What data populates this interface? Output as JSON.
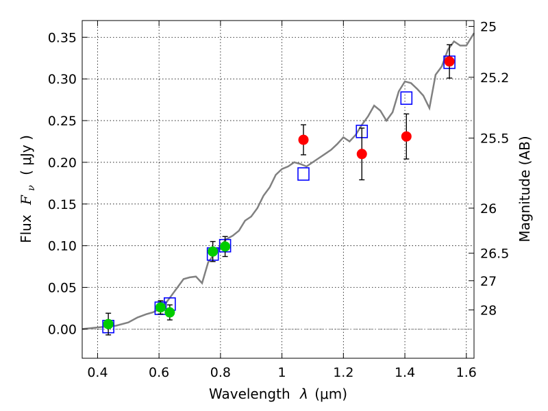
{
  "chart_data": {
    "type": "scatter",
    "xlabel": "Wavelength",
    "xlabel_symbol": "λ",
    "xlabel_unit": "(μm)",
    "ylabel": "Flux",
    "ylabel_symbol": "F",
    "ylabel_subscript": "ν",
    "ylabel_unit": "( μJy )",
    "y2label": "Magnitude (AB)",
    "xlim": [
      0.35,
      1.625
    ],
    "ylim": [
      -0.035,
      0.37
    ],
    "grid": true,
    "x_ticks": [
      0.4,
      0.6,
      0.8,
      1.0,
      1.2,
      1.4,
      1.6
    ],
    "x_tick_labels": [
      "0.4",
      "0.6",
      "0.8",
      "1",
      "1.2",
      "1.4",
      "1.6"
    ],
    "y_ticks": [
      0.0,
      0.05,
      0.1,
      0.15,
      0.2,
      0.25,
      0.3,
      0.35
    ],
    "y_tick_labels": [
      "0.00",
      "0.05",
      "0.10",
      "0.15",
      "0.20",
      "0.25",
      "0.30",
      "0.35"
    ],
    "y2_ticks": [
      {
        "label": "25",
        "flux": 0.363
      },
      {
        "label": "25.2",
        "flux": 0.302
      },
      {
        "label": "25.5",
        "flux": 0.229
      },
      {
        "label": "26",
        "flux": 0.145
      },
      {
        "label": "26.5",
        "flux": 0.091
      },
      {
        "label": "27",
        "flux": 0.058
      },
      {
        "label": "28",
        "flux": 0.023
      }
    ],
    "zero_line": 0.0,
    "series": [
      {
        "kind": "line",
        "color": "#808080",
        "points": [
          [
            0.35,
            0.0
          ],
          [
            0.4,
            0.002
          ],
          [
            0.43,
            0.003
          ],
          [
            0.46,
            0.004
          ],
          [
            0.5,
            0.008
          ],
          [
            0.53,
            0.014
          ],
          [
            0.56,
            0.018
          ],
          [
            0.58,
            0.02
          ],
          [
            0.6,
            0.024
          ],
          [
            0.62,
            0.03
          ],
          [
            0.64,
            0.04
          ],
          [
            0.66,
            0.05
          ],
          [
            0.68,
            0.06
          ],
          [
            0.7,
            0.062
          ],
          [
            0.72,
            0.063
          ],
          [
            0.74,
            0.055
          ],
          [
            0.76,
            0.08
          ],
          [
            0.78,
            0.09
          ],
          [
            0.8,
            0.1
          ],
          [
            0.82,
            0.108
          ],
          [
            0.84,
            0.112
          ],
          [
            0.86,
            0.118
          ],
          [
            0.88,
            0.13
          ],
          [
            0.9,
            0.135
          ],
          [
            0.92,
            0.145
          ],
          [
            0.94,
            0.16
          ],
          [
            0.96,
            0.17
          ],
          [
            0.98,
            0.185
          ],
          [
            1.0,
            0.192
          ],
          [
            1.02,
            0.195
          ],
          [
            1.04,
            0.2
          ],
          [
            1.06,
            0.198
          ],
          [
            1.08,
            0.195
          ],
          [
            1.1,
            0.2
          ],
          [
            1.12,
            0.205
          ],
          [
            1.14,
            0.21
          ],
          [
            1.16,
            0.215
          ],
          [
            1.18,
            0.222
          ],
          [
            1.2,
            0.23
          ],
          [
            1.22,
            0.225
          ],
          [
            1.24,
            0.233
          ],
          [
            1.26,
            0.245
          ],
          [
            1.28,
            0.255
          ],
          [
            1.3,
            0.268
          ],
          [
            1.32,
            0.262
          ],
          [
            1.34,
            0.25
          ],
          [
            1.36,
            0.26
          ],
          [
            1.38,
            0.285
          ],
          [
            1.4,
            0.297
          ],
          [
            1.42,
            0.295
          ],
          [
            1.44,
            0.288
          ],
          [
            1.46,
            0.28
          ],
          [
            1.48,
            0.265
          ],
          [
            1.5,
            0.305
          ],
          [
            1.52,
            0.315
          ],
          [
            1.54,
            0.335
          ],
          [
            1.56,
            0.345
          ],
          [
            1.58,
            0.34
          ],
          [
            1.6,
            0.34
          ],
          [
            1.625,
            0.355
          ]
        ]
      },
      {
        "kind": "open-square",
        "color": "#0000ff",
        "points": [
          [
            0.435,
            0.003
          ],
          [
            0.605,
            0.025
          ],
          [
            0.635,
            0.03
          ],
          [
            0.775,
            0.09
          ],
          [
            0.815,
            0.1
          ],
          [
            1.07,
            0.186
          ],
          [
            1.26,
            0.237
          ],
          [
            1.405,
            0.277
          ],
          [
            1.545,
            0.32
          ]
        ]
      },
      {
        "kind": "filled-circle",
        "color": "#00cc00",
        "points": [
          {
            "x": 0.435,
            "y": 0.006,
            "err": 0.013
          },
          {
            "x": 0.605,
            "y": 0.026,
            "err": 0.008
          },
          {
            "x": 0.635,
            "y": 0.02,
            "err": 0.009
          },
          {
            "x": 0.775,
            "y": 0.093,
            "err": 0.012
          },
          {
            "x": 0.815,
            "y": 0.099,
            "err": 0.012
          }
        ]
      },
      {
        "kind": "filled-circle",
        "color": "#ff0000",
        "points": [
          {
            "x": 1.07,
            "y": 0.227,
            "err": 0.018
          },
          {
            "x": 1.26,
            "y": 0.21,
            "err": 0.031
          },
          {
            "x": 1.405,
            "y": 0.231,
            "err": 0.027
          },
          {
            "x": 1.545,
            "y": 0.321,
            "err": 0.02
          }
        ]
      }
    ]
  }
}
